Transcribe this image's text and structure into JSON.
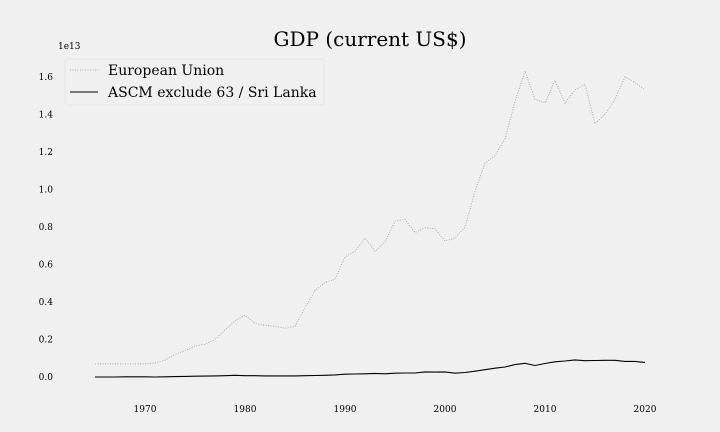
{
  "chart_data": {
    "type": "line",
    "title": "GDP (current US$)",
    "xlabel": "",
    "ylabel": "",
    "y_offset_text": "1e13",
    "xlim": [
      1962,
      2023
    ],
    "ylim": [
      -0.08,
      1.7
    ],
    "x_ticks": [
      1970,
      1980,
      1990,
      2000,
      2010,
      2020
    ],
    "y_ticks": [
      0.0,
      0.2,
      0.4,
      0.6,
      0.8,
      1.0,
      1.2,
      1.4,
      1.6
    ],
    "y_tick_labels": [
      "0.0",
      "0.2",
      "0.4",
      "0.6",
      "0.8",
      "1.0",
      "1.2",
      "1.4",
      "1.6"
    ],
    "grid": false,
    "legend_position": "top-left",
    "series": [
      {
        "name": "European Union",
        "color": "#aaaaaa",
        "style": "dotted",
        "x": [
          1965,
          1966,
          1967,
          1968,
          1969,
          1970,
          1971,
          1972,
          1973,
          1974,
          1975,
          1976,
          1977,
          1978,
          1979,
          1980,
          1981,
          1982,
          1983,
          1984,
          1985,
          1986,
          1987,
          1988,
          1989,
          1990,
          1991,
          1992,
          1993,
          1994,
          1995,
          1996,
          1997,
          1998,
          1999,
          2000,
          2001,
          2002,
          2003,
          2004,
          2005,
          2006,
          2007,
          2008,
          2009,
          2010,
          2011,
          2012,
          2013,
          2014,
          2015,
          2016,
          2017,
          2018,
          2019,
          2020
        ],
        "y": [
          0.07,
          0.07,
          0.07,
          0.07,
          0.07,
          0.07,
          0.075,
          0.09,
          0.12,
          0.14,
          0.165,
          0.175,
          0.2,
          0.25,
          0.3,
          0.33,
          0.285,
          0.275,
          0.27,
          0.26,
          0.27,
          0.37,
          0.46,
          0.505,
          0.52,
          0.64,
          0.67,
          0.74,
          0.67,
          0.72,
          0.83,
          0.84,
          0.77,
          0.795,
          0.79,
          0.725,
          0.74,
          0.8,
          0.99,
          1.14,
          1.18,
          1.27,
          1.47,
          1.63,
          1.48,
          1.46,
          1.58,
          1.46,
          1.53,
          1.56,
          1.35,
          1.4,
          1.48,
          1.6,
          1.57,
          1.53
        ]
      },
      {
        "name": "ASCM exclude 63 / Sri Lanka",
        "color": "#000000",
        "style": "solid",
        "x": [
          1965,
          1966,
          1967,
          1968,
          1969,
          1970,
          1971,
          1972,
          1973,
          1974,
          1975,
          1976,
          1977,
          1978,
          1979,
          1980,
          1981,
          1982,
          1983,
          1984,
          1985,
          1986,
          1987,
          1988,
          1989,
          1990,
          1991,
          1992,
          1993,
          1994,
          1995,
          1996,
          1997,
          1998,
          1999,
          2000,
          2001,
          2002,
          2003,
          2004,
          2005,
          2006,
          2007,
          2008,
          2009,
          2010,
          2011,
          2012,
          2013,
          2014,
          2015,
          2016,
          2017,
          2018,
          2019,
          2020
        ],
        "y": [
          0.0,
          0.0,
          0.0,
          0.001,
          0.001,
          0.001,
          0.0,
          0.001,
          0.002,
          0.003,
          0.004,
          0.005,
          0.006,
          0.007,
          0.009,
          0.007,
          0.007,
          0.006,
          0.006,
          0.006,
          0.006,
          0.007,
          0.008,
          0.009,
          0.011,
          0.015,
          0.016,
          0.017,
          0.019,
          0.017,
          0.02,
          0.021,
          0.021,
          0.027,
          0.026,
          0.027,
          0.02,
          0.024,
          0.031,
          0.039,
          0.047,
          0.053,
          0.066,
          0.073,
          0.061,
          0.072,
          0.081,
          0.085,
          0.091,
          0.087,
          0.088,
          0.089,
          0.089,
          0.083,
          0.083,
          0.078
        ]
      }
    ]
  }
}
